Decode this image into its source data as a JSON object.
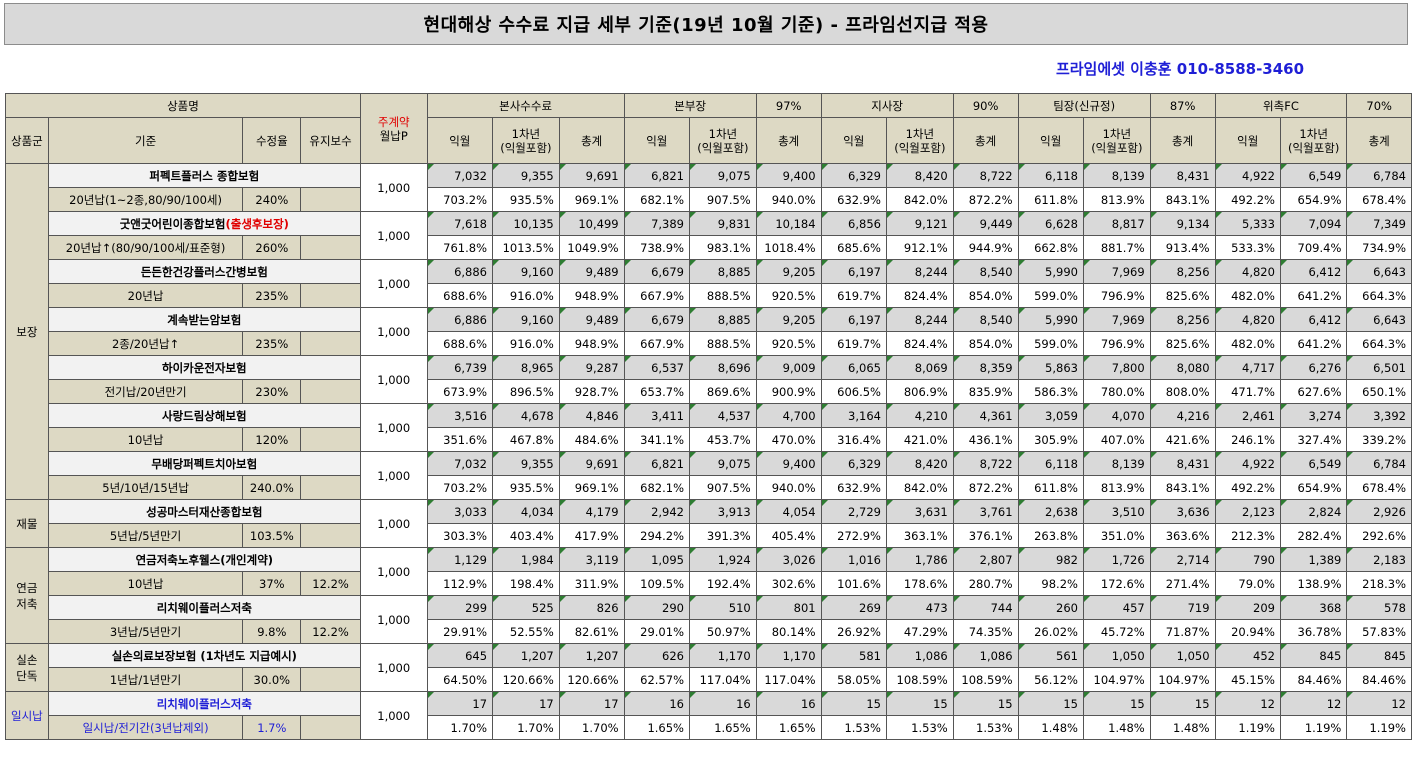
{
  "title": "현대해상 수수료 지급 세부 기준(19년 10월 기준) - 프라임선지급 적용",
  "contact": "프라임에셋 이충훈 010-8588-3460",
  "header": {
    "product_name": "상품명",
    "contract_line1": "주계약",
    "contract_line2": "월납P",
    "group": "상품군",
    "basis": "기준",
    "correction_rate": "수정율",
    "maintenance": "유지보수",
    "sections": [
      {
        "name": "본사수수료",
        "pct": ""
      },
      {
        "name": "본부장",
        "pct": "97%"
      },
      {
        "name": "지사장",
        "pct": "90%"
      },
      {
        "name": "팀장(신규정)",
        "pct": "87%"
      },
      {
        "name": "위촉FC",
        "pct": "70%"
      }
    ],
    "sub_cols": {
      "next_month": "익월",
      "year1_line1": "1차년",
      "year1_line2": "(익월포함)",
      "total": "총계"
    }
  },
  "groups": [
    {
      "label_lines": [
        "보장"
      ],
      "rows": 7
    },
    {
      "label_lines": [
        "재물"
      ],
      "rows": 1
    },
    {
      "label_lines": [
        "연금",
        "저축"
      ],
      "rows": 2
    },
    {
      "label_lines": [
        "실손",
        "단독"
      ],
      "rows": 1
    },
    {
      "label_lines": [
        "일시납"
      ],
      "rows": 1,
      "color": "#1f1fd6"
    }
  ],
  "products": [
    {
      "name": "퍼펙트플러스 종합보험",
      "name_extra": "",
      "basis": "20년납(1~2종,80/90/100세)",
      "rate": "240%",
      "maint": "",
      "premium": "1,000",
      "amounts": [
        "7,032",
        "9,355",
        "9,691",
        "6,821",
        "9,075",
        "9,400",
        "6,329",
        "8,420",
        "8,722",
        "6,118",
        "8,139",
        "8,431",
        "4,922",
        "6,549",
        "6,784"
      ],
      "pcts": [
        "703.2%",
        "935.5%",
        "969.1%",
        "682.1%",
        "907.5%",
        "940.0%",
        "632.9%",
        "842.0%",
        "872.2%",
        "611.8%",
        "813.9%",
        "843.1%",
        "492.2%",
        "654.9%",
        "678.4%"
      ]
    },
    {
      "name": "굿앤굿어린이종합보험",
      "name_extra": "(출생후보장)",
      "basis": "20년납↑(80/90/100세/표준형)",
      "rate": "260%",
      "maint": "",
      "premium": "1,000",
      "amounts": [
        "7,618",
        "10,135",
        "10,499",
        "7,389",
        "9,831",
        "10,184",
        "6,856",
        "9,121",
        "9,449",
        "6,628",
        "8,817",
        "9,134",
        "5,333",
        "7,094",
        "7,349"
      ],
      "pcts": [
        "761.8%",
        "1013.5%",
        "1049.9%",
        "738.9%",
        "983.1%",
        "1018.4%",
        "685.6%",
        "912.1%",
        "944.9%",
        "662.8%",
        "881.7%",
        "913.4%",
        "533.3%",
        "709.4%",
        "734.9%"
      ]
    },
    {
      "name": "든든한건강플러스간병보험",
      "name_extra": "",
      "basis": "20년납",
      "rate": "235%",
      "maint": "",
      "premium": "1,000",
      "amounts": [
        "6,886",
        "9,160",
        "9,489",
        "6,679",
        "8,885",
        "9,205",
        "6,197",
        "8,244",
        "8,540",
        "5,990",
        "7,969",
        "8,256",
        "4,820",
        "6,412",
        "6,643"
      ],
      "pcts": [
        "688.6%",
        "916.0%",
        "948.9%",
        "667.9%",
        "888.5%",
        "920.5%",
        "619.7%",
        "824.4%",
        "854.0%",
        "599.0%",
        "796.9%",
        "825.6%",
        "482.0%",
        "641.2%",
        "664.3%"
      ]
    },
    {
      "name": "계속받는암보험",
      "name_extra": "",
      "basis": "2종/20년납↑",
      "rate": "235%",
      "maint": "",
      "premium": "1,000",
      "amounts": [
        "6,886",
        "9,160",
        "9,489",
        "6,679",
        "8,885",
        "9,205",
        "6,197",
        "8,244",
        "8,540",
        "5,990",
        "7,969",
        "8,256",
        "4,820",
        "6,412",
        "6,643"
      ],
      "pcts": [
        "688.6%",
        "916.0%",
        "948.9%",
        "667.9%",
        "888.5%",
        "920.5%",
        "619.7%",
        "824.4%",
        "854.0%",
        "599.0%",
        "796.9%",
        "825.6%",
        "482.0%",
        "641.2%",
        "664.3%"
      ]
    },
    {
      "name": "하이카운전자보험",
      "name_extra": "",
      "basis": "전기납/20년만기",
      "rate": "230%",
      "maint": "",
      "premium": "1,000",
      "amounts": [
        "6,739",
        "8,965",
        "9,287",
        "6,537",
        "8,696",
        "9,009",
        "6,065",
        "8,069",
        "8,359",
        "5,863",
        "7,800",
        "8,080",
        "4,717",
        "6,276",
        "6,501"
      ],
      "pcts": [
        "673.9%",
        "896.5%",
        "928.7%",
        "653.7%",
        "869.6%",
        "900.9%",
        "606.5%",
        "806.9%",
        "835.9%",
        "586.3%",
        "780.0%",
        "808.0%",
        "471.7%",
        "627.6%",
        "650.1%"
      ]
    },
    {
      "name": "사랑드림상해보험",
      "name_extra": "",
      "basis": "10년납",
      "rate": "120%",
      "maint": "",
      "premium": "1,000",
      "amounts": [
        "3,516",
        "4,678",
        "4,846",
        "3,411",
        "4,537",
        "4,700",
        "3,164",
        "4,210",
        "4,361",
        "3,059",
        "4,070",
        "4,216",
        "2,461",
        "3,274",
        "3,392"
      ],
      "pcts": [
        "351.6%",
        "467.8%",
        "484.6%",
        "341.1%",
        "453.7%",
        "470.0%",
        "316.4%",
        "421.0%",
        "436.1%",
        "305.9%",
        "407.0%",
        "421.6%",
        "246.1%",
        "327.4%",
        "339.2%"
      ]
    },
    {
      "name": "무배당퍼펙트치아보험",
      "name_extra": "",
      "basis": "5년/10년/15년납",
      "rate": "240.0%",
      "maint": "",
      "premium": "1,000",
      "amounts": [
        "7,032",
        "9,355",
        "9,691",
        "6,821",
        "9,075",
        "9,400",
        "6,329",
        "8,420",
        "8,722",
        "6,118",
        "8,139",
        "8,431",
        "4,922",
        "6,549",
        "6,784"
      ],
      "pcts": [
        "703.2%",
        "935.5%",
        "969.1%",
        "682.1%",
        "907.5%",
        "940.0%",
        "632.9%",
        "842.0%",
        "872.2%",
        "611.8%",
        "813.9%",
        "843.1%",
        "492.2%",
        "654.9%",
        "678.4%"
      ]
    },
    {
      "name": "성공마스터재산종합보험",
      "name_extra": "",
      "basis": "5년납/5년만기",
      "rate": "103.5%",
      "maint": "",
      "premium": "1,000",
      "amounts": [
        "3,033",
        "4,034",
        "4,179",
        "2,942",
        "3,913",
        "4,054",
        "2,729",
        "3,631",
        "3,761",
        "2,638",
        "3,510",
        "3,636",
        "2,123",
        "2,824",
        "2,926"
      ],
      "pcts": [
        "303.3%",
        "403.4%",
        "417.9%",
        "294.2%",
        "391.3%",
        "405.4%",
        "272.9%",
        "363.1%",
        "376.1%",
        "263.8%",
        "351.0%",
        "363.6%",
        "212.3%",
        "282.4%",
        "292.6%"
      ]
    },
    {
      "name": "연금저축노후웰스(개인계약)",
      "name_extra": "",
      "basis": "10년납",
      "rate": "37%",
      "maint": "12.2%",
      "premium": "1,000",
      "amounts": [
        "1,129",
        "1,984",
        "3,119",
        "1,095",
        "1,924",
        "3,026",
        "1,016",
        "1,786",
        "2,807",
        "982",
        "1,726",
        "2,714",
        "790",
        "1,389",
        "2,183"
      ],
      "pcts": [
        "112.9%",
        "198.4%",
        "311.9%",
        "109.5%",
        "192.4%",
        "302.6%",
        "101.6%",
        "178.6%",
        "280.7%",
        "98.2%",
        "172.6%",
        "271.4%",
        "79.0%",
        "138.9%",
        "218.3%"
      ]
    },
    {
      "name": "리치웨이플러스저축",
      "name_extra": "",
      "basis": "3년납/5년만기",
      "rate": "9.8%",
      "maint": "12.2%",
      "premium": "1,000",
      "amounts": [
        "299",
        "525",
        "826",
        "290",
        "510",
        "801",
        "269",
        "473",
        "744",
        "260",
        "457",
        "719",
        "209",
        "368",
        "578"
      ],
      "pcts": [
        "29.91%",
        "52.55%",
        "82.61%",
        "29.01%",
        "50.97%",
        "80.14%",
        "26.92%",
        "47.29%",
        "74.35%",
        "26.02%",
        "45.72%",
        "71.87%",
        "20.94%",
        "36.78%",
        "57.83%"
      ]
    },
    {
      "name": "실손의료보장보험 (1차년도 지급예시)",
      "name_extra": "",
      "basis": "1년납/1년만기",
      "rate": "30.0%",
      "maint": "",
      "premium": "1,000",
      "amounts": [
        "645",
        "1,207",
        "1,207",
        "626",
        "1,170",
        "1,170",
        "581",
        "1,086",
        "1,086",
        "561",
        "1,050",
        "1,050",
        "452",
        "845",
        "845"
      ],
      "pcts": [
        "64.50%",
        "120.66%",
        "120.66%",
        "62.57%",
        "117.04%",
        "117.04%",
        "58.05%",
        "108.59%",
        "108.59%",
        "56.12%",
        "104.97%",
        "104.97%",
        "45.15%",
        "84.46%",
        "84.46%"
      ]
    },
    {
      "name": "리치웨이플러스저축",
      "name_extra": "",
      "basis": "일시납/전기간(3년납제외)",
      "rate": "1.7%",
      "maint": "",
      "premium": "1,000",
      "color": "#1f1fd6",
      "amounts": [
        "17",
        "17",
        "17",
        "16",
        "16",
        "16",
        "15",
        "15",
        "15",
        "15",
        "15",
        "15",
        "12",
        "12",
        "12"
      ],
      "pcts": [
        "1.70%",
        "1.70%",
        "1.70%",
        "1.65%",
        "1.65%",
        "1.65%",
        "1.53%",
        "1.53%",
        "1.53%",
        "1.48%",
        "1.48%",
        "1.48%",
        "1.19%",
        "1.19%",
        "1.19%"
      ]
    }
  ]
}
